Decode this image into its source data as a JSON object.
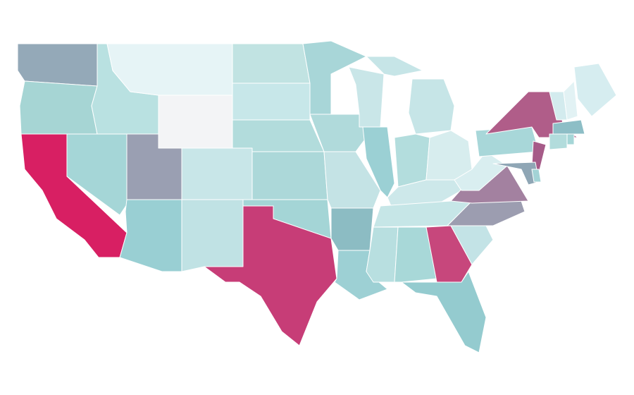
{
  "map": {
    "regions": [
      {
        "fill": "#94a9b8"
      },
      {
        "fill": "#a6d5d4"
      },
      {
        "fill": "#d81f63"
      },
      {
        "fill": "#a5d6d7"
      },
      {
        "fill": "#b9e1e1"
      },
      {
        "fill": "#e6f4f6"
      },
      {
        "fill": "#f3f4f6"
      },
      {
        "fill": "#9a9fb2"
      },
      {
        "fill": "#99cfd3"
      },
      {
        "fill": "#c8e6e8"
      },
      {
        "fill": "#c0e2e4"
      },
      {
        "fill": "#c1e3e2"
      },
      {
        "fill": "#c7e7e9"
      },
      {
        "fill": "#b2dcdc"
      },
      {
        "fill": "#acd8d9"
      },
      {
        "fill": "#a4d5d6"
      },
      {
        "fill": "#c73d77"
      },
      {
        "fill": "#a8d6d8"
      },
      {
        "fill": "#b0dadb"
      },
      {
        "fill": "#c4e3e5"
      },
      {
        "fill": "#8cbcc3"
      },
      {
        "fill": "#9dd0d4"
      },
      {
        "fill": "#c9e6e8"
      },
      {
        "fill": "#9bd0d4"
      },
      {
        "fill": "#c6e5e7"
      },
      {
        "fill": "#b3dddd"
      },
      {
        "fill": "#d7edee"
      },
      {
        "fill": "#cde8ea"
      },
      {
        "fill": "#c6e6e7"
      },
      {
        "fill": "#b8dfe0"
      },
      {
        "fill": "#a8d8d8"
      },
      {
        "fill": "#c7477c"
      },
      {
        "fill": "#94cbcf"
      },
      {
        "fill": "#c3e3e6"
      },
      {
        "fill": "#9c9db0"
      },
      {
        "fill": "#a381a0"
      },
      {
        "fill": "#d9eef0"
      },
      {
        "fill": "#a8d7d9"
      },
      {
        "fill": "#b05d89"
      },
      {
        "fill": "#a65b88"
      },
      {
        "fill": "#8fa6b5"
      },
      {
        "fill": "#a3d3d6"
      },
      {
        "fill": "#d6edf0"
      },
      {
        "fill": "#e2f2f4"
      },
      {
        "fill": "#d3ebee"
      },
      {
        "fill": "#8dbec6"
      },
      {
        "fill": "#b2dcdc"
      },
      {
        "fill": "#a5d6d7"
      }
    ]
  }
}
